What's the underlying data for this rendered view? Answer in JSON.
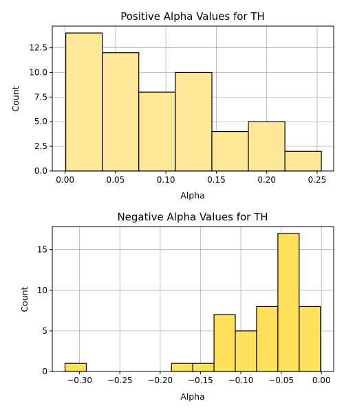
{
  "chart_data": [
    {
      "type": "bar",
      "title": "Positive Alpha Values for TH",
      "xlabel": "Alpha",
      "ylabel": "Count",
      "bar_color": "#ffe898",
      "edge_color": "#000000",
      "grid_color": "#b0b0b0",
      "grid": true,
      "xlim": [
        -0.0127,
        0.2664
      ],
      "ylim": [
        0,
        14.7
      ],
      "xticks": [
        0.0,
        0.05,
        0.1,
        0.15,
        0.2,
        0.25
      ],
      "xtick_labels": [
        "0.00",
        "0.05",
        "0.10",
        "0.15",
        "0.20",
        "0.25"
      ],
      "yticks": [
        0,
        2.5,
        5,
        7.5,
        10,
        12.5
      ],
      "ytick_labels": [
        "0.0",
        "2.5",
        "5.0",
        "7.5",
        "10.0",
        "12.5"
      ],
      "bins": [
        {
          "x0": 0.0007,
          "x1": 0.0369,
          "count": 14
        },
        {
          "x0": 0.0369,
          "x1": 0.0731,
          "count": 12
        },
        {
          "x0": 0.0731,
          "x1": 0.1093,
          "count": 8
        },
        {
          "x0": 0.1093,
          "x1": 0.1456,
          "count": 10
        },
        {
          "x0": 0.1456,
          "x1": 0.1818,
          "count": 4
        },
        {
          "x0": 0.1818,
          "x1": 0.218,
          "count": 5
        },
        {
          "x0": 0.218,
          "x1": 0.2542,
          "count": 2
        }
      ]
    },
    {
      "type": "bar",
      "title": "Negative Alpha Values for TH",
      "xlabel": "Alpha",
      "ylabel": "Count",
      "bar_color": "#ffe05a",
      "edge_color": "#000000",
      "grid_color": "#b0b0b0",
      "grid": true,
      "xlim": [
        -0.3338,
        0.0152
      ],
      "ylim": [
        0,
        17.85
      ],
      "xticks": [
        -0.3,
        -0.25,
        -0.2,
        -0.15,
        -0.1,
        -0.05,
        0.0
      ],
      "xtick_labels": [
        "−0.30",
        "−0.25",
        "−0.20",
        "−0.15",
        "−0.10",
        "−0.05",
        "0.00"
      ],
      "yticks": [
        0,
        5,
        10,
        15
      ],
      "ytick_labels": [
        "0",
        "5",
        "10",
        "15"
      ],
      "bins": [
        {
          "x0": -0.318,
          "x1": -0.2916,
          "count": 1
        },
        {
          "x0": -0.2916,
          "x1": -0.2652,
          "count": 0
        },
        {
          "x0": -0.2652,
          "x1": -0.2388,
          "count": 0
        },
        {
          "x0": -0.2388,
          "x1": -0.2124,
          "count": 0
        },
        {
          "x0": -0.2124,
          "x1": -0.186,
          "count": 0
        },
        {
          "x0": -0.186,
          "x1": -0.1596,
          "count": 1
        },
        {
          "x0": -0.1596,
          "x1": -0.1332,
          "count": 1
        },
        {
          "x0": -0.1332,
          "x1": -0.1068,
          "count": 7
        },
        {
          "x0": -0.1068,
          "x1": -0.0804,
          "count": 5
        },
        {
          "x0": -0.0804,
          "x1": -0.054,
          "count": 8
        },
        {
          "x0": -0.054,
          "x1": -0.0276,
          "count": 17
        },
        {
          "x0": -0.0276,
          "x1": -0.0012,
          "count": 8
        }
      ]
    }
  ]
}
